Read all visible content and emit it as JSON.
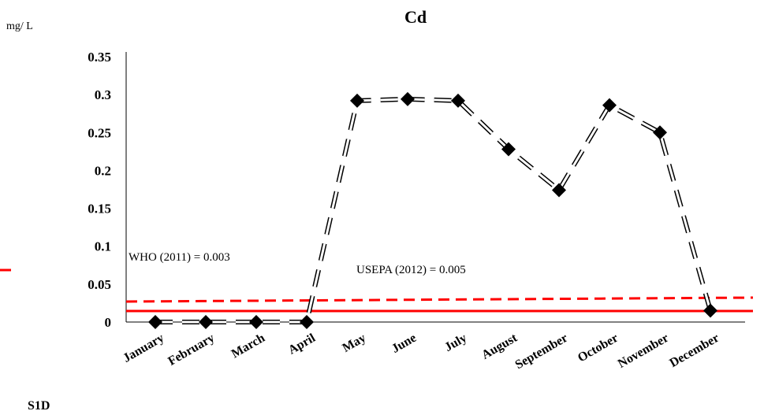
{
  "chart_data": {
    "type": "line",
    "title": "Cd",
    "unit_label": "mg/ L",
    "panel_label": "S1D",
    "xlabel": "",
    "ylabel": "",
    "categories": [
      "January",
      "February",
      "March",
      "April",
      "May",
      "June",
      "July",
      "August",
      "September",
      "October",
      "November",
      "December"
    ],
    "series": [
      {
        "values": [
          0,
          0,
          0,
          0,
          0.292,
          0.294,
          0.292,
          0.228,
          0.174,
          0.286,
          0.25,
          0.015
        ]
      }
    ],
    "ylim": [
      0,
      0.35
    ],
    "yticks": [
      "0",
      "0.05",
      "0.1",
      "0.15",
      "0.2",
      "0.25",
      "0.3",
      "0.35"
    ],
    "grid": false,
    "reference_lines": [
      {
        "label": "WHO (2011) = 0.003",
        "style": "solid",
        "color": "#ff0000"
      },
      {
        "label": "USEPA (2012) = 0.005",
        "style": "dashed",
        "color": "#ff0000"
      }
    ],
    "colors": {
      "series": "#000000",
      "reference": "#ff0000"
    }
  }
}
